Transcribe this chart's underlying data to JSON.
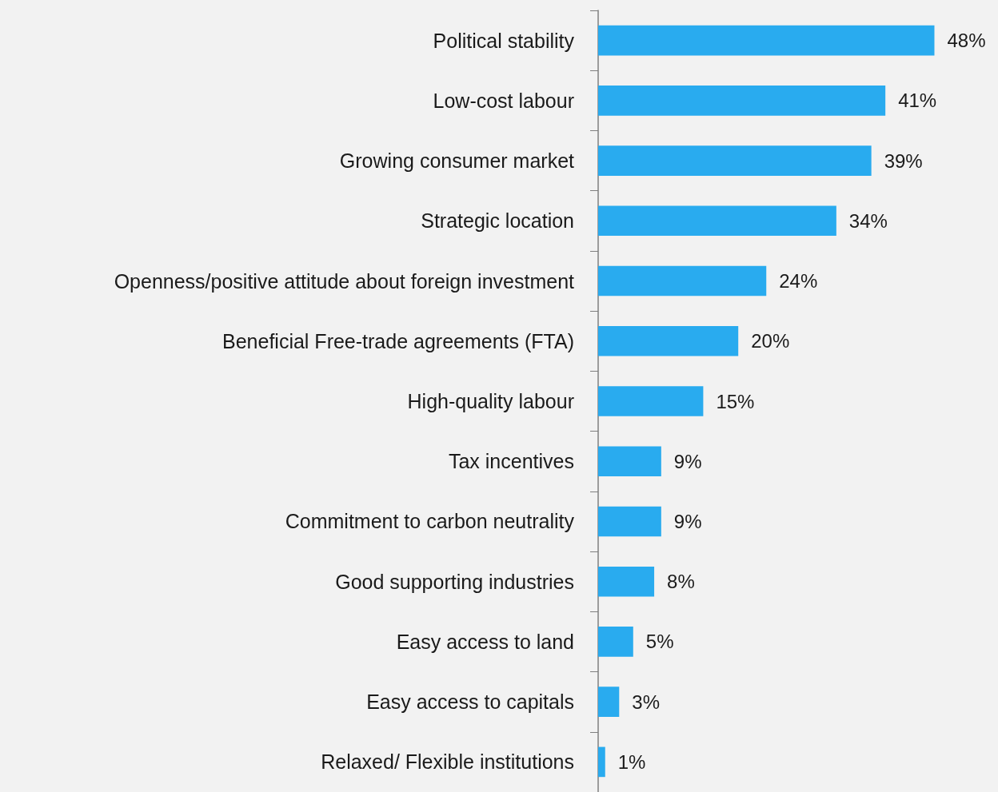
{
  "chart_data": {
    "type": "bar",
    "orientation": "horizontal",
    "categories": [
      "Political stability",
      "Low-cost labour",
      "Growing consumer market",
      "Strategic location",
      "Openness/positive attitude about foreign investment",
      "Beneficial Free-trade agreements (FTA)",
      "High-quality labour",
      "Tax incentives",
      "Commitment to carbon neutrality",
      "Good supporting industries",
      "Easy access to land",
      "Easy access to capitals",
      "Relaxed/ Flexible institutions"
    ],
    "values": [
      48,
      41,
      39,
      34,
      24,
      20,
      15,
      9,
      9,
      8,
      5,
      3,
      1
    ],
    "value_labels": [
      "48%",
      "41%",
      "39%",
      "34%",
      "24%",
      "20%",
      "15%",
      "9%",
      "9%",
      "8%",
      "5%",
      "3%",
      "1%"
    ],
    "color": "#29abef"
  }
}
